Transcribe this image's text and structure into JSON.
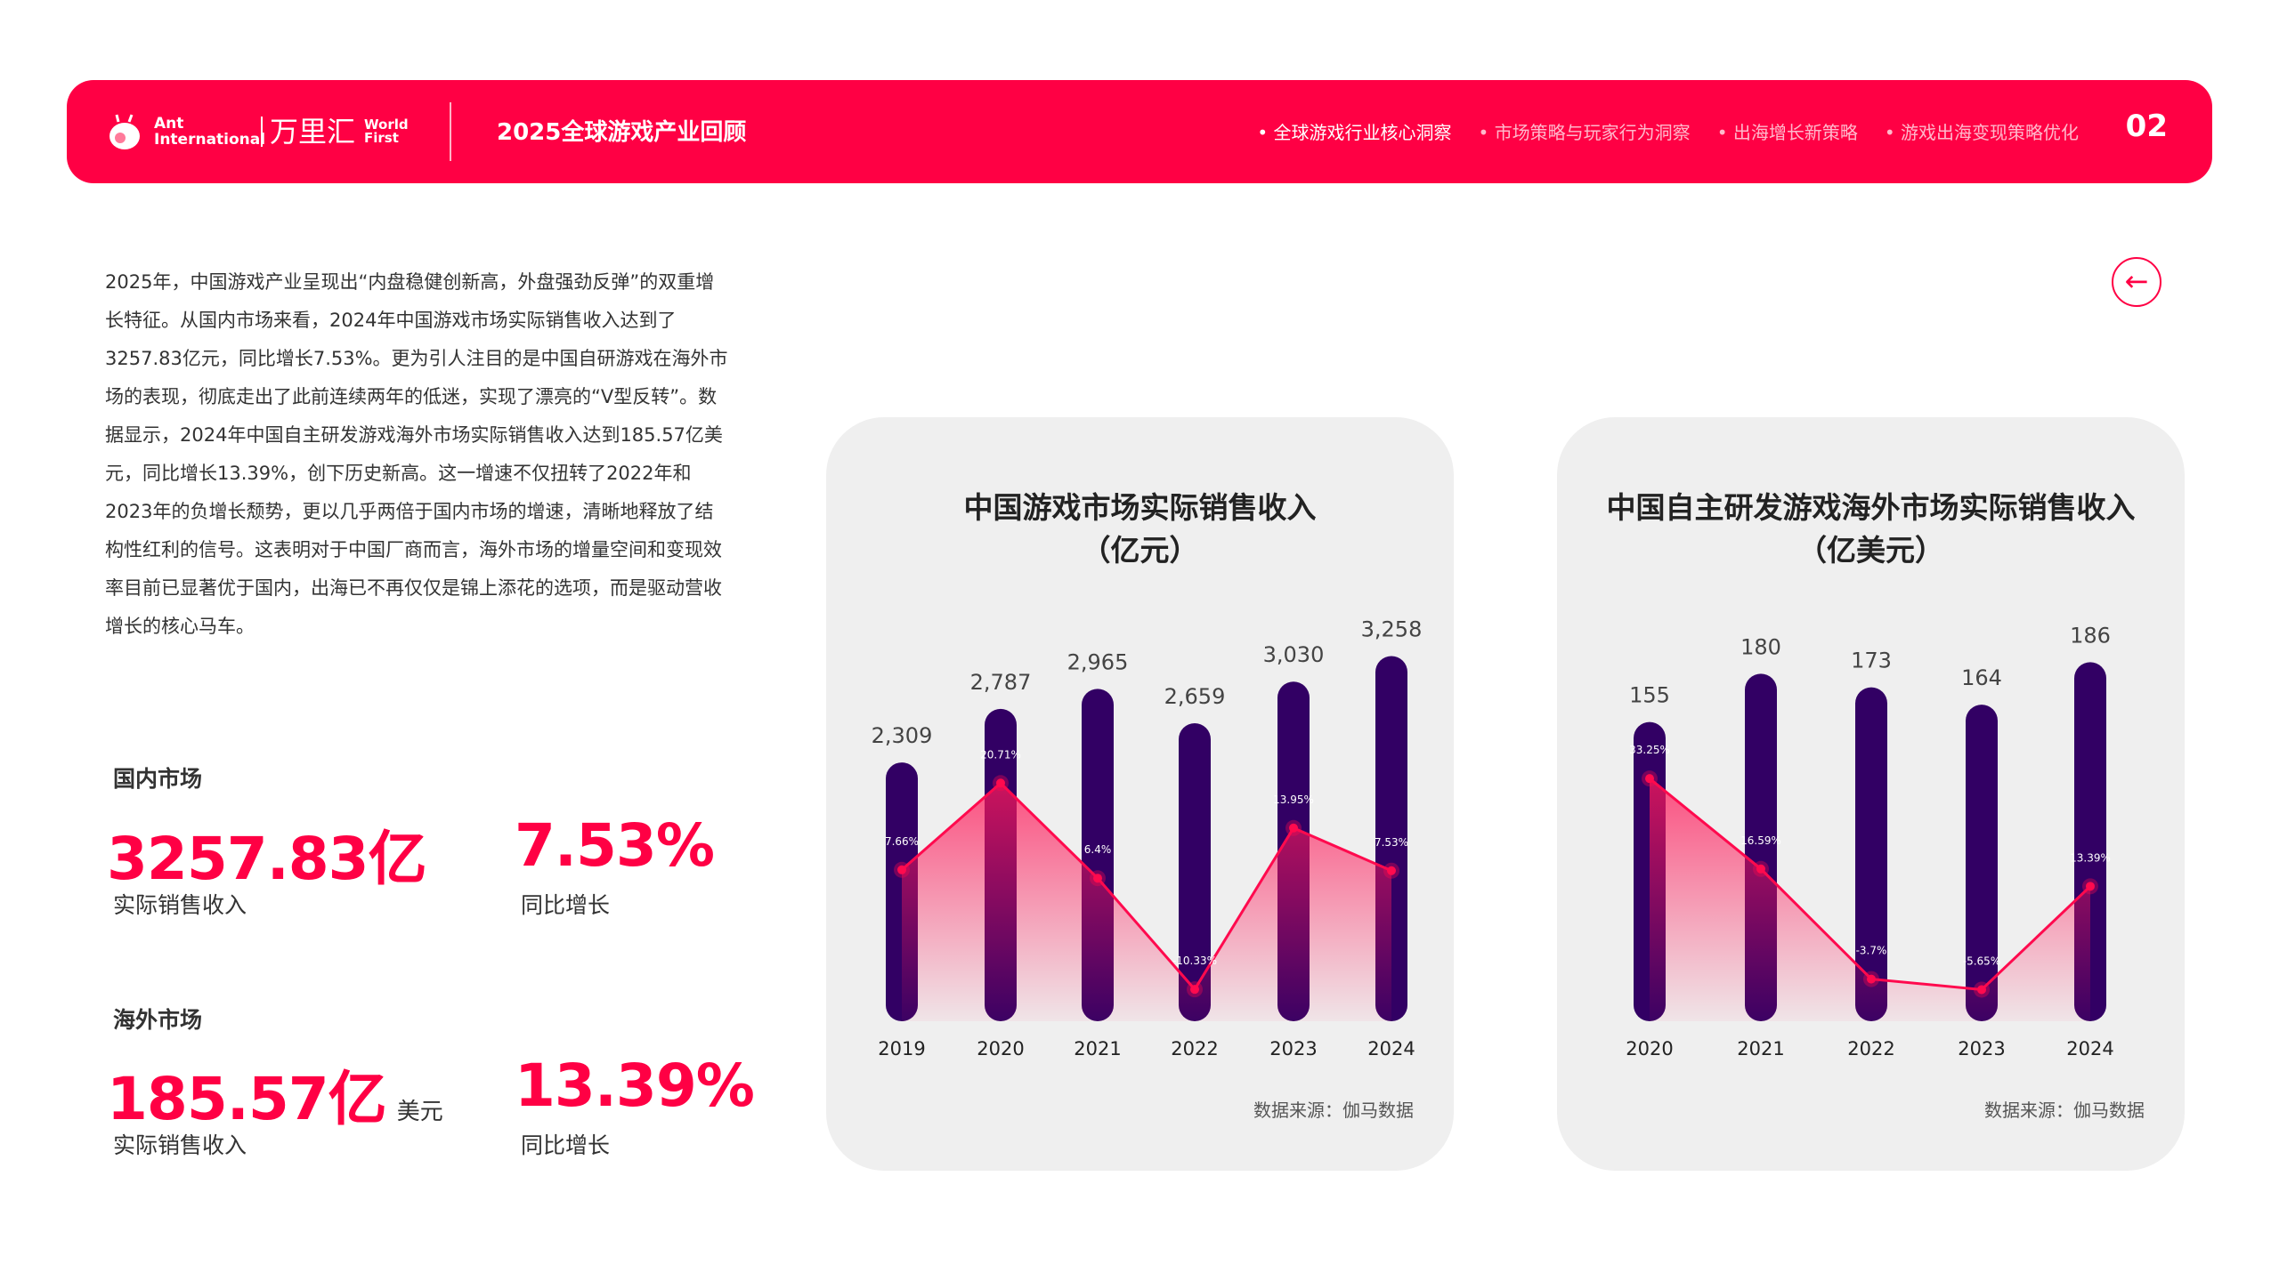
{
  "header": {
    "logo_ant": "Ant International",
    "logo_cn": "万里汇",
    "logo_wf": "World First",
    "title": "2025全球游戏产业回顾",
    "nav": [
      {
        "label": "全球游戏行业核心洞察",
        "active": true
      },
      {
        "label": "市场策略与玩家行为洞察",
        "active": false
      },
      {
        "label": "出海增长新策略",
        "active": false
      },
      {
        "label": "游戏出海变现策略优化",
        "active": false
      }
    ],
    "page_number": "02"
  },
  "back_icon": "arrow-left-circle",
  "paragraph": "2025年，中国游戏产业呈现出“内盘稳健创新高，外盘强劲反弹”的双重增长特征。从国内市场来看，2024年中国游戏市场实际销售收入达到了3257.83亿元，同比增长7.53%。更为引人注目的是中国自研游戏在海外市场的表现，彻底走出了此前连续两年的低迷，实现了漂亮的“V型反转”。数据显示，2024年中国自主研发游戏海外市场实际销售收入达到185.57亿美元，同比增长13.39%，创下历史新高。这一增速不仅扭转了2022年和2023年的负增长颓势，更以几乎两倍于国内市场的增速，清晰地释放了结构性红利的信号。这表明对于中国厂商而言，海外市场的增量空间和变现效率目前已显著优于国内，出海已不再仅仅是锦上添花的选项，而是驱动营收增长的核心马车。",
  "domestic": {
    "label": "国内市场",
    "revenue": "3257.83亿",
    "revenue_label": "实际销售收入",
    "growth": "7.53%",
    "growth_label": "同比增长"
  },
  "overseas": {
    "label": "海外市场",
    "revenue": "185.57亿",
    "unit": "美元",
    "revenue_label": "实际销售收入",
    "growth": "13.39%",
    "growth_label": "同比增长"
  },
  "colors": {
    "accent": "#ff0044",
    "bar": "#320064",
    "line": "#ff0a4e"
  },
  "chart_data": [
    {
      "type": "bar",
      "title_line1": "中国游戏市场实际销售收入",
      "title_line2": "（亿元）",
      "source": "数据来源：伽马数据",
      "categories": [
        "2019",
        "2020",
        "2021",
        "2022",
        "2023",
        "2024"
      ],
      "value_labels": [
        "2,309",
        "2,787",
        "2,965",
        "2,659",
        "3,030",
        "3,258"
      ],
      "series": [
        {
          "type": "bar",
          "values": [
            2309,
            2787,
            2965,
            2659,
            3030,
            3258
          ]
        },
        {
          "type": "line",
          "values": [
            7.66,
            20.71,
            6.4,
            -10.33,
            13.95,
            7.53
          ],
          "labels": [
            "7.66%",
            "20.71%",
            "6.4%",
            "-10.33%",
            "13.95%",
            "7.53%"
          ]
        }
      ]
    },
    {
      "type": "bar",
      "title_line1": "中国自主研发游戏海外市场实际销售收入",
      "title_line2": "（亿美元）",
      "source": "数据来源：伽马数据",
      "categories": [
        "2020",
        "2021",
        "2022",
        "2023",
        "2024"
      ],
      "value_labels": [
        "155",
        "180",
        "173",
        "164",
        "186"
      ],
      "series": [
        {
          "type": "bar",
          "values": [
            155,
            180,
            173,
            164,
            186
          ]
        },
        {
          "type": "line",
          "values": [
            33.25,
            16.59,
            -3.7,
            -5.65,
            13.39
          ],
          "labels": [
            "33.25%",
            "16.59%",
            "-3.7%",
            "-5.65%",
            "13.39%"
          ]
        }
      ]
    }
  ]
}
